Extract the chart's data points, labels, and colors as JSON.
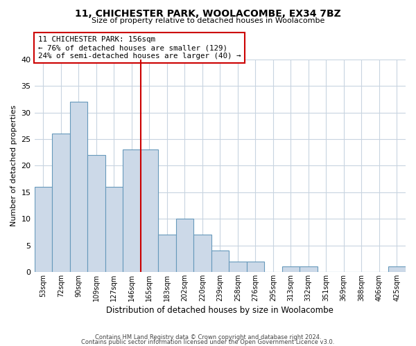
{
  "title1": "11, CHICHESTER PARK, WOOLACOMBE, EX34 7BZ",
  "title2": "Size of property relative to detached houses in Woolacombe",
  "xlabel": "Distribution of detached houses by size in Woolacombe",
  "ylabel": "Number of detached properties",
  "bin_labels": [
    "53sqm",
    "72sqm",
    "90sqm",
    "109sqm",
    "127sqm",
    "146sqm",
    "165sqm",
    "183sqm",
    "202sqm",
    "220sqm",
    "239sqm",
    "258sqm",
    "276sqm",
    "295sqm",
    "313sqm",
    "332sqm",
    "351sqm",
    "369sqm",
    "388sqm",
    "406sqm",
    "425sqm"
  ],
  "bar_values": [
    16,
    26,
    32,
    22,
    16,
    23,
    23,
    7,
    10,
    7,
    4,
    2,
    2,
    0,
    1,
    1,
    0,
    0,
    0,
    0,
    1
  ],
  "bar_color": "#ccd9e8",
  "bar_edge_color": "#6699bb",
  "vline_x_idx": 6,
  "vline_color": "#cc0000",
  "annotation_line1": "11 CHICHESTER PARK: 156sqm",
  "annotation_line2": "← 76% of detached houses are smaller (129)",
  "annotation_line3": "24% of semi-detached houses are larger (40) →",
  "annotation_box_edge": "#cc0000",
  "ylim": [
    0,
    40
  ],
  "yticks": [
    0,
    5,
    10,
    15,
    20,
    25,
    30,
    35,
    40
  ],
  "footer1": "Contains HM Land Registry data © Crown copyright and database right 2024.",
  "footer2": "Contains public sector information licensed under the Open Government Licence v3.0.",
  "bg_color": "#ffffff",
  "grid_color": "#c8d4e0"
}
